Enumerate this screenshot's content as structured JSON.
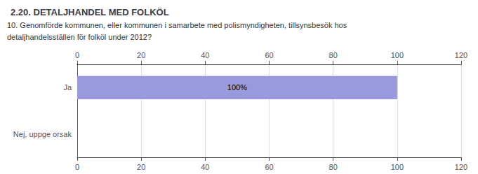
{
  "chart_data": {
    "type": "bar",
    "orientation": "horizontal",
    "title": "2.20. DETALJHANDEL MED FOLKÖL",
    "annotations": [
      "10. Genomförde kommunen, eller kommunen i samarbete med polismyndigheten, tillsynsbesök hos",
      "detaljhandelsställen för folköl under 2012?"
    ],
    "categories": [
      "Ja",
      "Nej, uppge orsak"
    ],
    "values": [
      100,
      0
    ],
    "value_labels": [
      "100%",
      null
    ],
    "data_labels": true,
    "color": "#9999dd",
    "xlim": [
      0,
      120
    ],
    "xticks": [
      0,
      20,
      40,
      60,
      80,
      100,
      120
    ],
    "grid": true
  }
}
